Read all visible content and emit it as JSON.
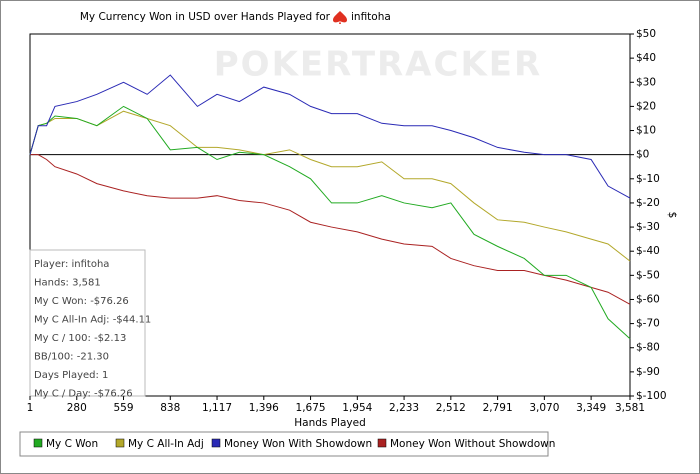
{
  "chart_data": {
    "type": "line",
    "title": "My Currency Won in USD over Hands Played for",
    "title_player": "infitoha",
    "watermark": "POKERTRACKER",
    "x_label": "Hands Played",
    "y_label": "$",
    "x": [
      1,
      50,
      100,
      150,
      280,
      400,
      559,
      700,
      838,
      1000,
      1117,
      1250,
      1396,
      1550,
      1675,
      1800,
      1954,
      2100,
      2233,
      2400,
      2512,
      2650,
      2791,
      2950,
      3070,
      3200,
      3349,
      3450,
      3581
    ],
    "series": [
      {
        "name": "My C Won",
        "color": "#22aa22",
        "values": [
          0,
          12,
          13,
          16,
          15,
          12,
          20,
          15,
          2,
          3,
          -2,
          1,
          0,
          -5,
          -10,
          -20,
          -20,
          -17,
          -20,
          -22,
          -20,
          -33,
          -38,
          -43,
          -50,
          -50,
          -55,
          -68,
          -76.26
        ]
      },
      {
        "name": "My C All-In Adj",
        "color": "#b3a82b",
        "values": [
          0,
          12,
          13,
          15,
          15,
          12,
          18,
          15,
          12,
          3,
          3,
          2,
          0,
          2,
          -2,
          -5,
          -5,
          -3,
          -10,
          -10,
          -12,
          -20,
          -27,
          -28,
          -30,
          -32,
          -35,
          -37,
          -44.11
        ]
      },
      {
        "name": "Money Won With Showdown",
        "color": "#2a2ab5",
        "values": [
          0,
          12,
          12,
          20,
          22,
          25,
          30,
          25,
          33,
          20,
          25,
          22,
          28,
          25,
          20,
          17,
          17,
          13,
          12,
          12,
          10,
          7,
          3,
          1,
          0,
          0,
          -2,
          -13,
          -18
        ]
      },
      {
        "name": "Money Won Without Showdown",
        "color": "#aa2222",
        "values": [
          0,
          0,
          -2,
          -5,
          -8,
          -12,
          -15,
          -17,
          -18,
          -18,
          -17,
          -19,
          -20,
          -23,
          -28,
          -30,
          -32,
          -35,
          -37,
          -38,
          -43,
          -46,
          -48,
          -48,
          -50,
          -52,
          -55,
          -57,
          -62
        ]
      }
    ],
    "xlim": [
      1,
      3581
    ],
    "xticks": [
      1,
      280,
      559,
      838,
      {
        "value": 1117,
        "label": "1,117"
      },
      {
        "value": 1396,
        "label": "1,396"
      },
      {
        "value": 1675,
        "label": "1,675"
      },
      {
        "value": 1954,
        "label": "1,954"
      },
      {
        "value": 2233,
        "label": "2,233"
      },
      {
        "value": 2512,
        "label": "2,512"
      },
      {
        "value": 2791,
        "label": "2,791"
      },
      {
        "value": 3070,
        "label": "3,070"
      },
      {
        "value": 3349,
        "label": "3,349"
      },
      {
        "value": 3581,
        "label": "3,581"
      }
    ],
    "ylim": [
      -100,
      50
    ],
    "yticks": [
      {
        "value": 50,
        "label": "$50"
      },
      {
        "value": 40,
        "label": "$40"
      },
      {
        "value": 30,
        "label": "$30"
      },
      {
        "value": 20,
        "label": "$20"
      },
      {
        "value": 10,
        "label": "$10"
      },
      {
        "value": 0,
        "label": "$0"
      },
      {
        "value": -10,
        "label": "$-10"
      },
      {
        "value": -20,
        "label": "$-20"
      },
      {
        "value": -30,
        "label": "$-30"
      },
      {
        "value": -40,
        "label": "$-40"
      },
      {
        "value": -50,
        "label": "$-50"
      },
      {
        "value": -60,
        "label": "$-60"
      },
      {
        "value": -70,
        "label": "$-70"
      },
      {
        "value": -80,
        "label": "$-80"
      },
      {
        "value": -90,
        "label": "$-90"
      },
      {
        "value": -100,
        "label": "$-100"
      }
    ],
    "stats_box": [
      "Player: infitoha",
      "Hands: 3,581",
      "My C Won: -$76.26",
      "My C All-In Adj: -$44.11",
      "My C / 100: -$2.13",
      "BB/100: -21.30",
      "Days Played: 1",
      "My C / Day: -$76.26"
    ],
    "legend": "bottom"
  }
}
